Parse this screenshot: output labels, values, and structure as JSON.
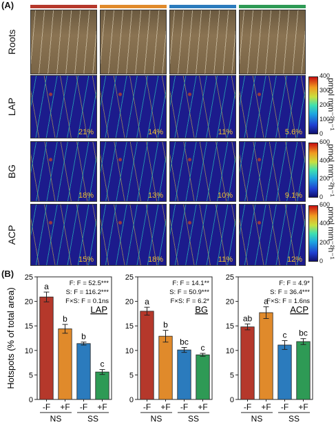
{
  "panel_a_label": "(A)",
  "panel_b_label": "(B)",
  "top_bar_colors": [
    "#b5382b",
    "#e08a2b",
    "#2b7bbd",
    "#2e9a55"
  ],
  "rows": [
    {
      "label": "Roots",
      "percents": [
        "",
        "",
        "",
        ""
      ]
    },
    {
      "label": "LAP",
      "percents": [
        "21%",
        "14%",
        "11%",
        "5.6%"
      ],
      "colorbar": {
        "ticks": [
          "400",
          "300",
          "200",
          "100",
          "0"
        ],
        "unit": "pmol mm⁻²h⁻¹"
      }
    },
    {
      "label": "BG",
      "percents": [
        "18%",
        "13%",
        "10%",
        "9.1%"
      ],
      "colorbar": {
        "ticks": [
          "600",
          "400",
          "200",
          "0"
        ],
        "unit": "pmol mm⁻²h⁻¹"
      }
    },
    {
      "label": "ACP",
      "percents": [
        "15%",
        "18%",
        "11%",
        "12%"
      ],
      "colorbar": {
        "ticks": [
          "600",
          "400",
          "200",
          "0"
        ],
        "unit": "pmol mm⁻²h⁻¹"
      }
    }
  ],
  "chart_data": [
    {
      "type": "bar",
      "title": "LAP",
      "ylabel": "Hotspots (% of total area)",
      "ylim": [
        0,
        25
      ],
      "yticks": [
        0,
        5,
        10,
        15,
        20,
        25
      ],
      "categories": [
        "-F",
        "+F",
        "-F",
        "+F"
      ],
      "groups": [
        "NS",
        "SS"
      ],
      "values": [
        20.9,
        14.4,
        11.4,
        5.6
      ],
      "errors": [
        1.0,
        0.9,
        0.3,
        0.5
      ],
      "letters": [
        "a",
        "b",
        "b",
        "c"
      ],
      "colors": [
        "#b5382b",
        "#e08a2b",
        "#2b7bbd",
        "#2e9a55"
      ],
      "stats": [
        "F:  F = 52.5***",
        "S:  F = 116.2***",
        "F×S: F = 0.1ns"
      ]
    },
    {
      "type": "bar",
      "title": "BG",
      "ylabel": "",
      "ylim": [
        0,
        25
      ],
      "yticks": [
        0,
        5,
        10,
        15,
        20,
        25
      ],
      "categories": [
        "-F",
        "+F",
        "-F",
        "+F"
      ],
      "groups": [
        "NS",
        "SS"
      ],
      "values": [
        18.0,
        12.9,
        10.1,
        9.1
      ],
      "errors": [
        0.8,
        1.2,
        0.5,
        0.3
      ],
      "letters": [
        "a",
        "b",
        "bc",
        "c"
      ],
      "colors": [
        "#b5382b",
        "#e08a2b",
        "#2b7bbd",
        "#2e9a55"
      ],
      "stats": [
        "F:  F = 14.1**",
        "S:  F = 50.9***",
        "F×S: F = 6.2*"
      ]
    },
    {
      "type": "bar",
      "title": "ACP",
      "ylabel": "",
      "ylim": [
        0,
        25
      ],
      "yticks": [
        0,
        5,
        10,
        15,
        20,
        25
      ],
      "categories": [
        "-F",
        "+F",
        "-F",
        "+F"
      ],
      "groups": [
        "NS",
        "SS"
      ],
      "values": [
        14.8,
        17.7,
        11.1,
        11.8
      ],
      "errors": [
        0.6,
        1.2,
        0.9,
        0.6
      ],
      "letters": [
        "ab",
        "a",
        "c",
        "bc"
      ],
      "colors": [
        "#b5382b",
        "#e08a2b",
        "#2b7bbd",
        "#2e9a55"
      ],
      "stats": [
        "F:  F = 4.9*",
        "S:  F = 36.4***",
        "F×S: F = 1.6ns"
      ]
    }
  ]
}
